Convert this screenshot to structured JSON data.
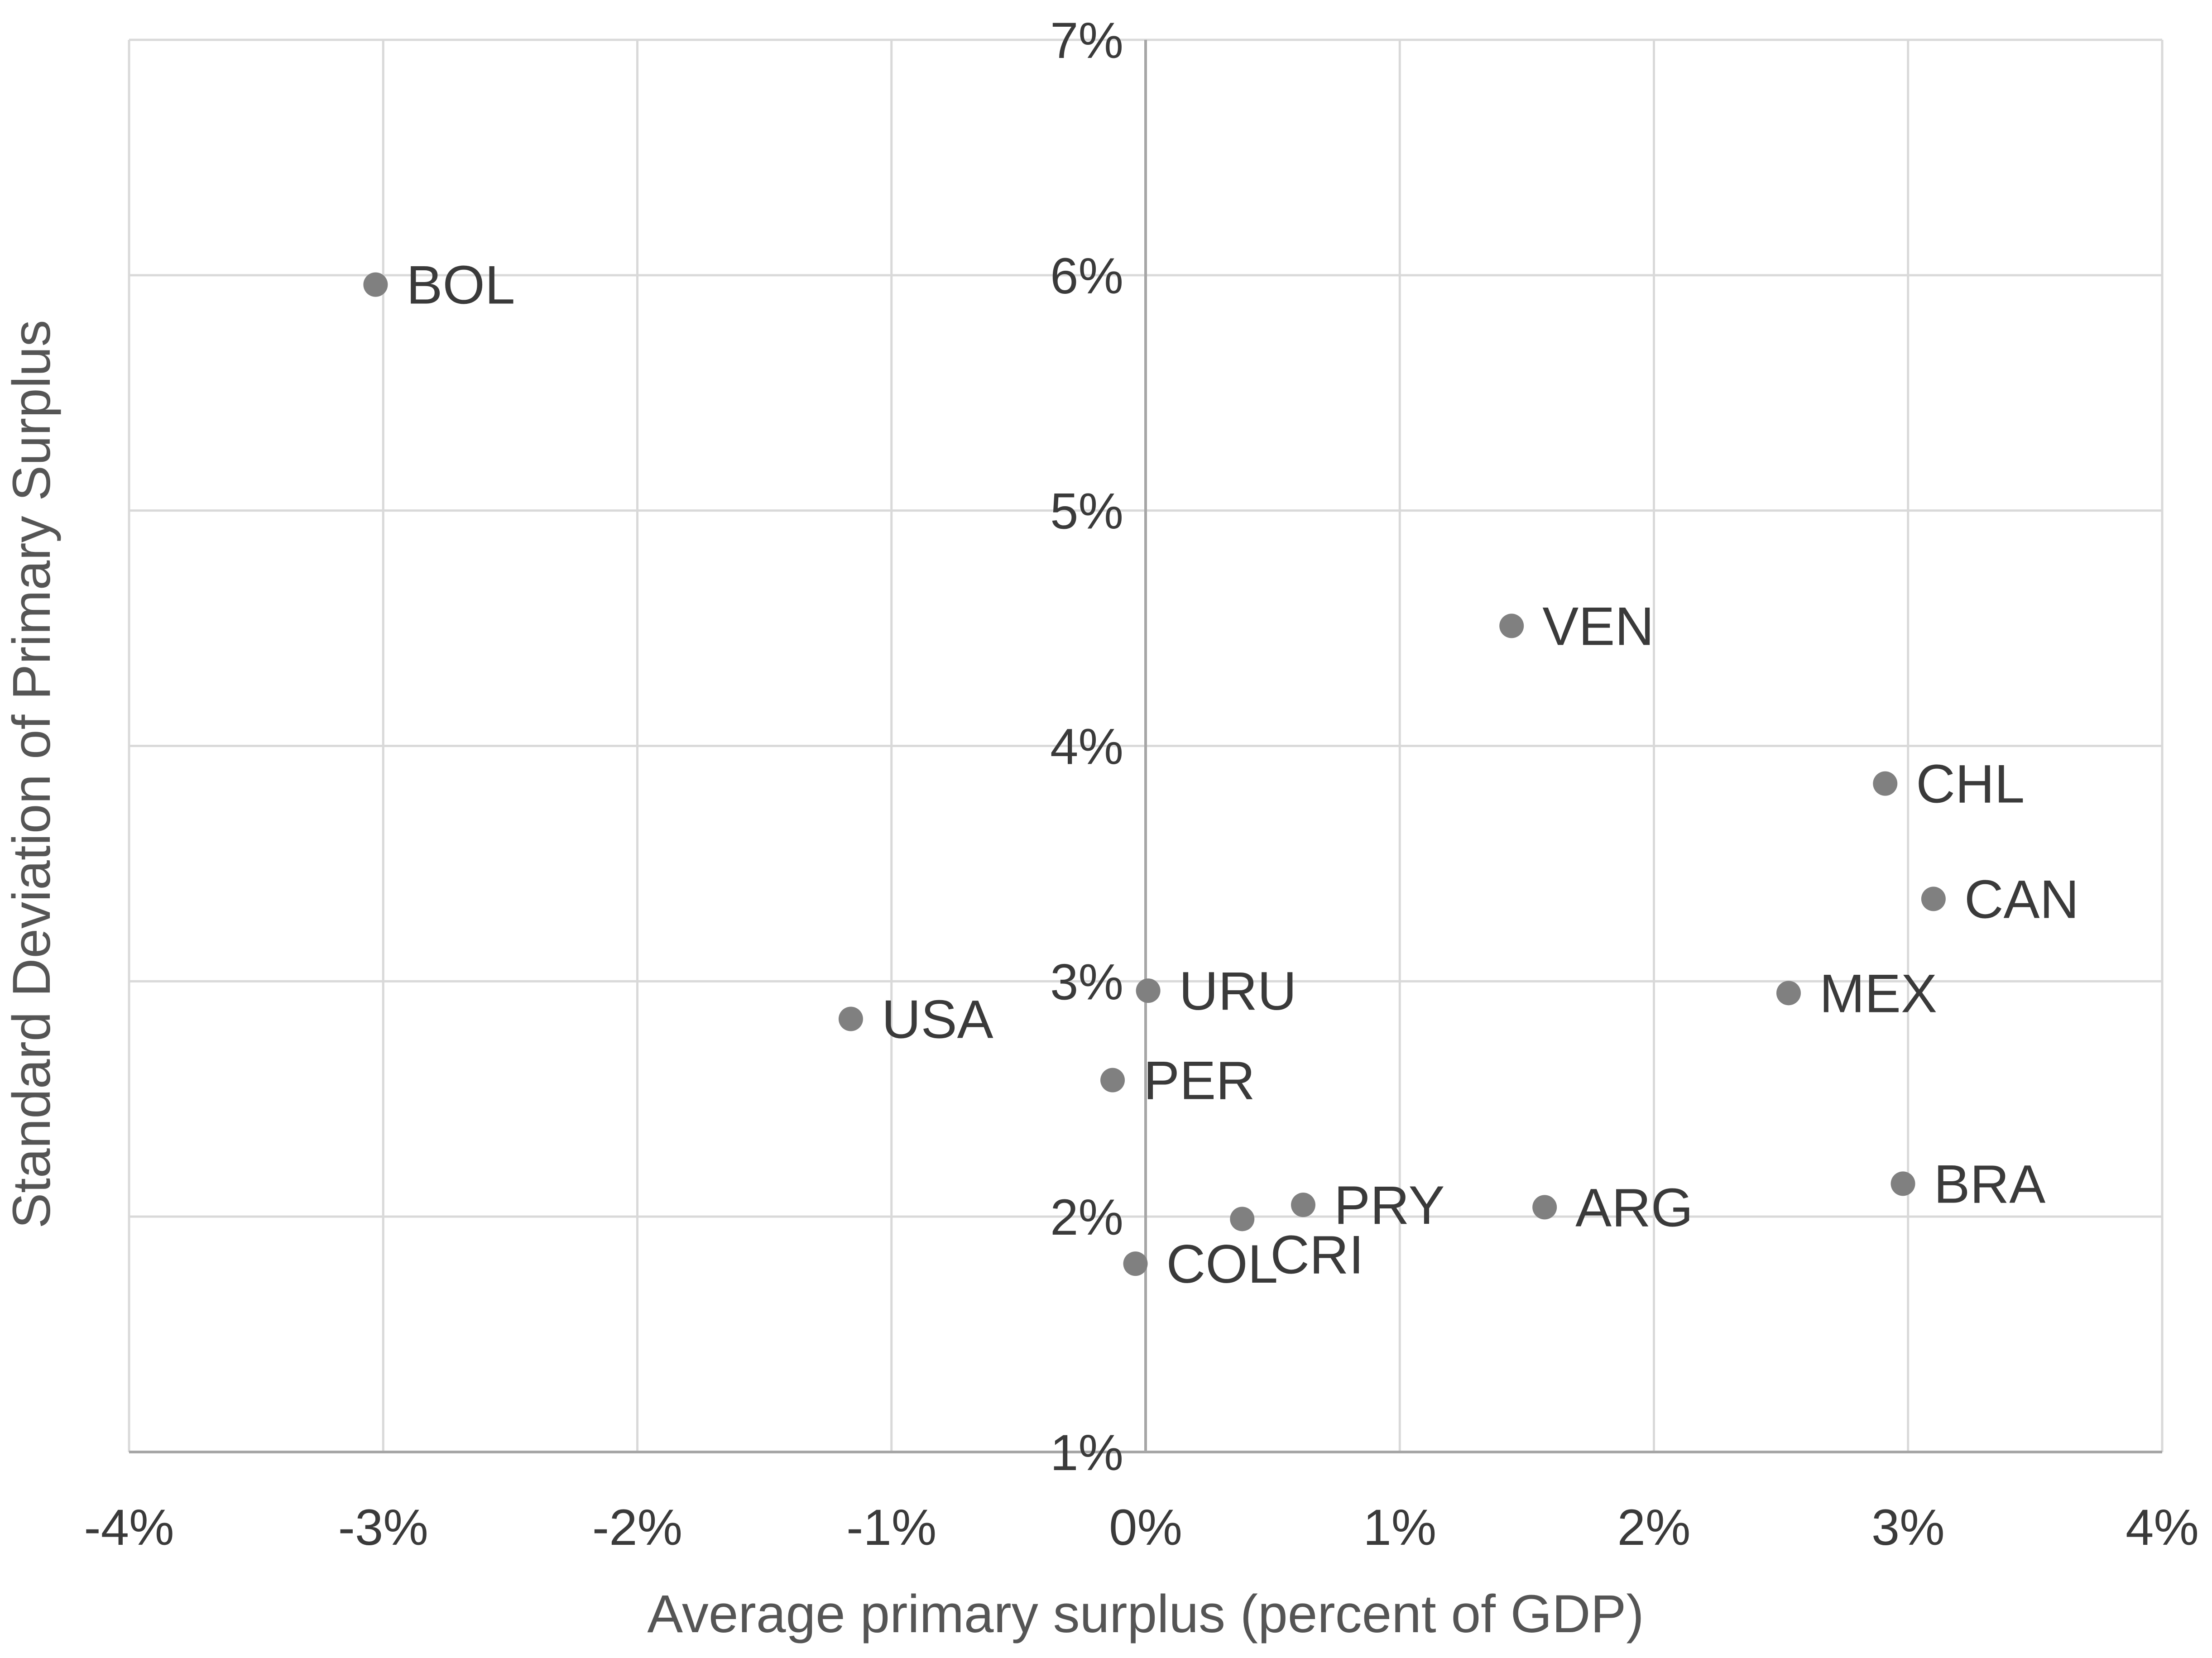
{
  "chart_data": {
    "type": "scatter",
    "title": "",
    "xlabel": "Average primary surplus (percent of  GDP)",
    "ylabel": "Standard Deviation of Primary Surplus",
    "xlim": [
      -4,
      4
    ],
    "ylim": [
      1,
      7
    ],
    "x_ticks": [
      -4,
      -3,
      -2,
      -1,
      0,
      1,
      2,
      3,
      4
    ],
    "y_ticks": [
      1,
      2,
      3,
      4,
      5,
      6,
      7
    ],
    "x_tick_labels": [
      "-4%",
      "-3%",
      "-2%",
      "-1%",
      "0%",
      "1%",
      "2%",
      "3%",
      "4%"
    ],
    "y_tick_labels": [
      "1%",
      "2%",
      "3%",
      "4%",
      "5%",
      "6%",
      "7%"
    ],
    "grid": true,
    "marker_color": "#808080",
    "points": [
      {
        "label": "BOL",
        "x": -3.03,
        "y": 5.96
      },
      {
        "label": "VEN",
        "x": 1.44,
        "y": 4.51
      },
      {
        "label": "CHL",
        "x": 2.91,
        "y": 3.84
      },
      {
        "label": "CAN",
        "x": 3.1,
        "y": 3.35
      },
      {
        "label": "URU",
        "x": 0.01,
        "y": 2.96
      },
      {
        "label": "MEX",
        "x": 2.53,
        "y": 2.95
      },
      {
        "label": "USA",
        "x": -1.16,
        "y": 2.84
      },
      {
        "label": "PER",
        "x": -0.13,
        "y": 2.58
      },
      {
        "label": "BRA",
        "x": 2.98,
        "y": 2.14
      },
      {
        "label": "PRY",
        "x": 0.62,
        "y": 2.05
      },
      {
        "label": "ARG",
        "x": 1.57,
        "y": 2.04
      },
      {
        "label": "CRI",
        "x": 0.38,
        "y": 1.99
      },
      {
        "label": "COL",
        "x": -0.04,
        "y": 1.8
      }
    ]
  }
}
